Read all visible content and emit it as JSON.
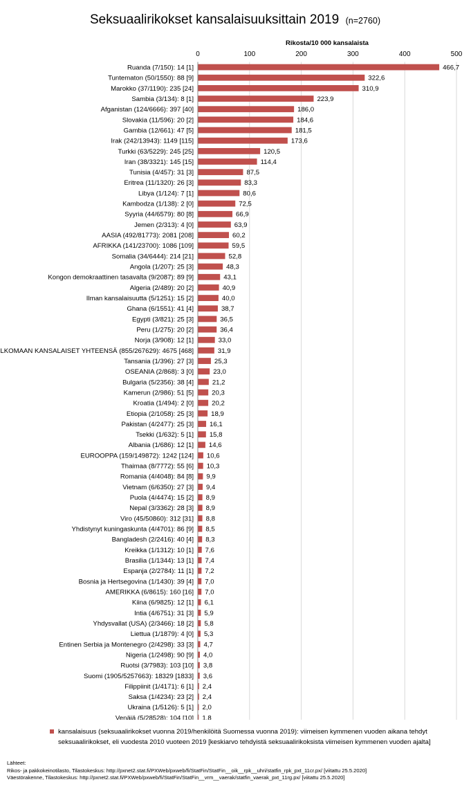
{
  "colors": {
    "bar": "#c0504d",
    "grid": "#d9d9d9",
    "axis": "#888888"
  },
  "chart_data": {
    "type": "bar",
    "orientation": "horizontal",
    "title": "Seksuaalirikokset kansalaisuuksittain 2019",
    "subtitle": "(n=2760)",
    "axis_title": "Rikosta/10 000 kansalaista",
    "xlim": [
      0,
      500
    ],
    "x_ticks": [
      "0",
      "100",
      "200",
      "300",
      "400",
      "500"
    ],
    "grid": true,
    "categories": [
      "Ruanda (7/150): 14 [1]",
      "Tuntematon (50/1550): 88 [9]",
      "Marokko (37/1190): 235 [24]",
      "Sambia (3/134): 8 [1]",
      "Afganistan (124/6666): 397 [40]",
      "Slovakia (11/596): 20 [2]",
      "Gambia (12/661): 47 [5]",
      "Irak (242/13943): 1149 [115]",
      "Turkki (63/5229): 245 [25]",
      "Iran (38/3321): 145 [15]",
      "Tunisia (4/457): 31 [3]",
      "Eritrea (11/1320): 26 [3]",
      "Libya (1/124): 7 [1]",
      "Kambodza (1/138): 2 [0]",
      "Syyria (44/6579): 80 [8]",
      "Jemen (2/313): 4 [0]",
      "AASIA (492/81773): 2081 [208]",
      "AFRIKKA (141/23700): 1086 [109]",
      "Somalia (34/6444): 214 [21]",
      "Angola (1/207): 25 [3]",
      "Kongon demokraattinen tasavalta (9/2087): 89 [9]",
      "Algeria (2/489): 20 [2]",
      "Ilman kansalaisuutta (5/1251): 15 [2]",
      "Ghana (6/1551): 41 [4]",
      "Egypti (3/821): 25 [3]",
      "Peru (1/275): 20 [2]",
      "Norja (3/908): 12 [1]",
      "ULKOMAAN KANSALAISET YHTEENSÄ (855/267629): 4675 [468]",
      "Tansania (1/396): 27 [3]",
      "OSEANIA (2/868): 3 [0]",
      "Bulgaria (5/2356): 38 [4]",
      "Kamerun (2/986): 51 [5]",
      "Kroatia (1/494): 2 [0]",
      "Etiopia (2/1058): 25 [3]",
      "Pakistan (4/2477): 25 [3]",
      "Tsekki (1/632): 5 [1]",
      "Albania (1/686): 12 [1]",
      "EUROOPPA (159/149872): 1242 [124]",
      "Thaimaa (8/7772): 55 [6]",
      "Romania (4/4048): 84 [8]",
      "Vietnam (6/6350): 27 [3]",
      "Puola (4/4474): 15 [2]",
      "Nepal (3/3362): 28 [3]",
      "Viro (45/50860): 312 [31]",
      "Yhdistynyt kuningaskunta (4/4701): 86 [9]",
      "Bangladesh (2/2416): 40 [4]",
      "Kreikka (1/1312): 10 [1]",
      "Brasilia (1/1344): 13 [1]",
      "Espanja (2/2784): 11 [1]",
      "Bosnia ja Hertsegovina (1/1430): 39 [4]",
      "AMERIKKA (6/8615): 160 [16]",
      "Kiina (6/9825): 12 [1]",
      "Intia (4/6751): 31 [3]",
      "Yhdysvallat (USA) (2/3466): 18 [2]",
      "Liettua (1/1879): 4 [0]",
      "Entinen Serbia ja Montenegro (2/4298): 33 [3]",
      "Nigeria (1/2498): 90 [9]",
      "Ruotsi (3/7983): 103 [10]",
      "Suomi (1905/5257663): 18329 [1833]",
      "Filippiinit (1/4171): 6 [1]",
      "Saksa (1/4234): 23 [2]",
      "Ukraina (1/5126): 5 [1]",
      "Venäjä (5/28528): 104 [10]"
    ],
    "values": [
      466.7,
      322.6,
      310.9,
      223.9,
      186.0,
      184.6,
      181.5,
      173.6,
      120.5,
      114.4,
      87.5,
      83.3,
      80.6,
      72.5,
      66.9,
      63.9,
      60.2,
      59.5,
      52.8,
      48.3,
      43.1,
      40.9,
      40.0,
      38.7,
      36.5,
      36.4,
      33.0,
      31.9,
      25.3,
      23.0,
      21.2,
      20.3,
      20.2,
      18.9,
      16.1,
      15.8,
      14.6,
      10.6,
      10.3,
      9.9,
      9.4,
      8.9,
      8.9,
      8.8,
      8.5,
      8.3,
      7.6,
      7.4,
      7.2,
      7.0,
      7.0,
      6.1,
      5.9,
      5.8,
      5.3,
      4.7,
      4.0,
      3.8,
      3.6,
      2.4,
      2.4,
      2.0,
      1.8
    ],
    "value_labels": [
      "466,7",
      "322,6",
      "310,9",
      "223,9",
      "186,0",
      "184,6",
      "181,5",
      "173,6",
      "120,5",
      "114,4",
      "87,5",
      "83,3",
      "80,6",
      "72,5",
      "66,9",
      "63,9",
      "60,2",
      "59,5",
      "52,8",
      "48,3",
      "43,1",
      "40,9",
      "40,0",
      "38,7",
      "36,5",
      "36,4",
      "33,0",
      "31,9",
      "25,3",
      "23,0",
      "21,2",
      "20,3",
      "20,2",
      "18,9",
      "16,1",
      "15,8",
      "14,6",
      "10,6",
      "10,3",
      "9,9",
      "9,4",
      "8,9",
      "8,9",
      "8,8",
      "8,5",
      "8,3",
      "7,6",
      "7,4",
      "7,2",
      "7,0",
      "7,0",
      "6,1",
      "5,9",
      "5,8",
      "5,3",
      "4,7",
      "4,0",
      "3,8",
      "3,6",
      "2,4",
      "2,4",
      "2,0",
      "1,8"
    ],
    "legend": {
      "placement": "bottom",
      "entry": "kansalaisuus (seksuaalirikokset vuonna 2019/henkilöitä Suomessa vuonna 2019): viimeisen kymmenen vuoden aikana tehdyt seksuaalirikokset, eli vuodesta 2010 vuoteen 2019 [keskiarvo tehdyistä seksuaalirikoksista viimeisen kymmenen vuoden ajalta]"
    }
  },
  "sources": {
    "heading": "Lähteet:",
    "lines": [
      "Rikos- ja pakkokeinotilasto, Tilastokeskus: http://pxnet2.stat.fi/PXWeb/pxweb/fi/StatFin/StatFin__oik__rpk__uhri/statfin_rpk_pxt_11cr.px/ [viitattu 25.5.2020]",
      "Väestörakenne, Tilastokeskus: http://pxnet2.stat.fi/PXWeb/pxweb/fi/StatFin/StatFin__vrm__vaerak/statfin_vaerak_pxt_11rg.px/ [viitattu 25.5.2020]"
    ]
  }
}
